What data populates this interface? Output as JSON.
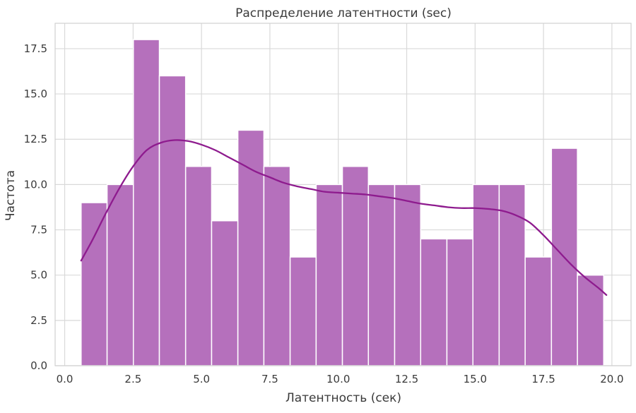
{
  "chart_data": {
    "type": "bar",
    "subtype": "histogram-with-kde",
    "title": "Распределение латентности (sec)",
    "xlabel": "Латентность (сек)",
    "ylabel": "Частота",
    "xlim": [
      -0.35,
      20.7
    ],
    "ylim": [
      0,
      18.9
    ],
    "xticks": [
      0,
      2.5,
      5,
      7.5,
      10,
      12.5,
      15,
      17.5,
      20
    ],
    "xtick_labels": [
      "0.0",
      "2.5",
      "5.0",
      "7.5",
      "10.0",
      "12.5",
      "15.0",
      "17.5",
      "20.0"
    ],
    "yticks": [
      0,
      2.5,
      5,
      7.5,
      10,
      12.5,
      15,
      17.5
    ],
    "ytick_labels": [
      "0.0",
      "2.5",
      "5.0",
      "7.5",
      "10.0",
      "12.5",
      "15.0",
      "17.5"
    ],
    "grid": true,
    "bins": [
      {
        "x0": 0.6,
        "x1": 1.55,
        "count": 9
      },
      {
        "x0": 1.55,
        "x1": 2.51,
        "count": 10
      },
      {
        "x0": 2.51,
        "x1": 3.46,
        "count": 18
      },
      {
        "x0": 3.46,
        "x1": 4.42,
        "count": 16
      },
      {
        "x0": 4.42,
        "x1": 5.37,
        "count": 11
      },
      {
        "x0": 5.37,
        "x1": 6.33,
        "count": 8
      },
      {
        "x0": 6.33,
        "x1": 7.28,
        "count": 13
      },
      {
        "x0": 7.28,
        "x1": 8.24,
        "count": 11
      },
      {
        "x0": 8.24,
        "x1": 9.19,
        "count": 6
      },
      {
        "x0": 9.19,
        "x1": 10.15,
        "count": 10
      },
      {
        "x0": 10.15,
        "x1": 11.1,
        "count": 11
      },
      {
        "x0": 11.1,
        "x1": 12.06,
        "count": 10
      },
      {
        "x0": 12.06,
        "x1": 13.01,
        "count": 10
      },
      {
        "x0": 13.01,
        "x1": 13.97,
        "count": 7
      },
      {
        "x0": 13.97,
        "x1": 14.92,
        "count": 7
      },
      {
        "x0": 14.92,
        "x1": 15.88,
        "count": 10
      },
      {
        "x0": 15.88,
        "x1": 16.83,
        "count": 10
      },
      {
        "x0": 16.83,
        "x1": 17.79,
        "count": 6
      },
      {
        "x0": 17.79,
        "x1": 18.74,
        "count": 12
      },
      {
        "x0": 18.74,
        "x1": 19.7,
        "count": 5
      }
    ],
    "kde": {
      "x": [
        0.6,
        1.0,
        1.5,
        2.0,
        2.5,
        3.0,
        3.5,
        4.0,
        4.5,
        5.0,
        5.5,
        6.0,
        6.5,
        7.0,
        7.5,
        8.0,
        8.5,
        9.0,
        9.5,
        10.0,
        10.5,
        11.0,
        11.5,
        12.0,
        12.5,
        13.0,
        13.5,
        14.0,
        14.5,
        15.0,
        15.5,
        16.0,
        16.5,
        17.0,
        17.5,
        18.0,
        18.5,
        19.0,
        19.5,
        19.8
      ],
      "y": [
        5.8,
        6.9,
        8.4,
        9.8,
        11.0,
        11.9,
        12.3,
        12.45,
        12.4,
        12.2,
        11.9,
        11.5,
        11.1,
        10.7,
        10.4,
        10.1,
        9.9,
        9.75,
        9.6,
        9.55,
        9.5,
        9.45,
        9.35,
        9.25,
        9.1,
        8.95,
        8.85,
        8.75,
        8.7,
        8.7,
        8.65,
        8.55,
        8.3,
        7.9,
        7.2,
        6.4,
        5.6,
        4.9,
        4.3,
        3.9
      ]
    },
    "colors": {
      "bar_fill": "#b570bc",
      "bar_edge": "#ffffff",
      "kde_line": "#8e1b8e",
      "grid": "#d9d9d9",
      "background": "#ffffff"
    }
  }
}
